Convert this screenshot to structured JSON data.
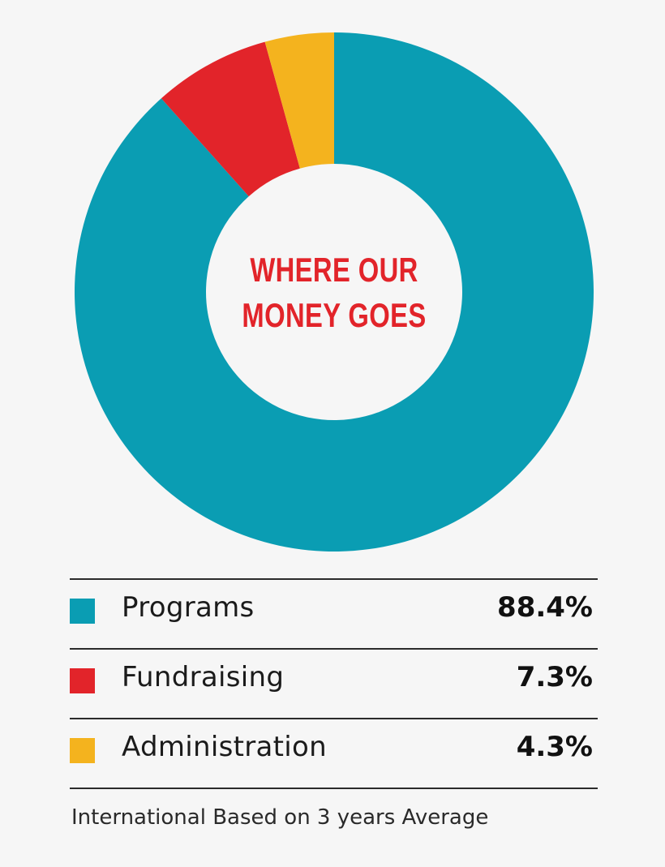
{
  "chart_data": {
    "type": "pie",
    "title": "WHERE OUR MONEY GOES",
    "title_lines": [
      "WHERE OUR",
      "MONEY GOES"
    ],
    "donut": true,
    "categories": [
      "Programs",
      "Fundraising",
      "Administration"
    ],
    "values": [
      88.4,
      7.3,
      4.3
    ],
    "value_labels": [
      "88.4%",
      "7.3%",
      "4.3%"
    ],
    "colors": [
      "#0a9db3",
      "#e2242a",
      "#f4b31e"
    ],
    "title_color": "#e2242a",
    "legend_position": "bottom",
    "footnote": "International Based on 3 years Average"
  }
}
